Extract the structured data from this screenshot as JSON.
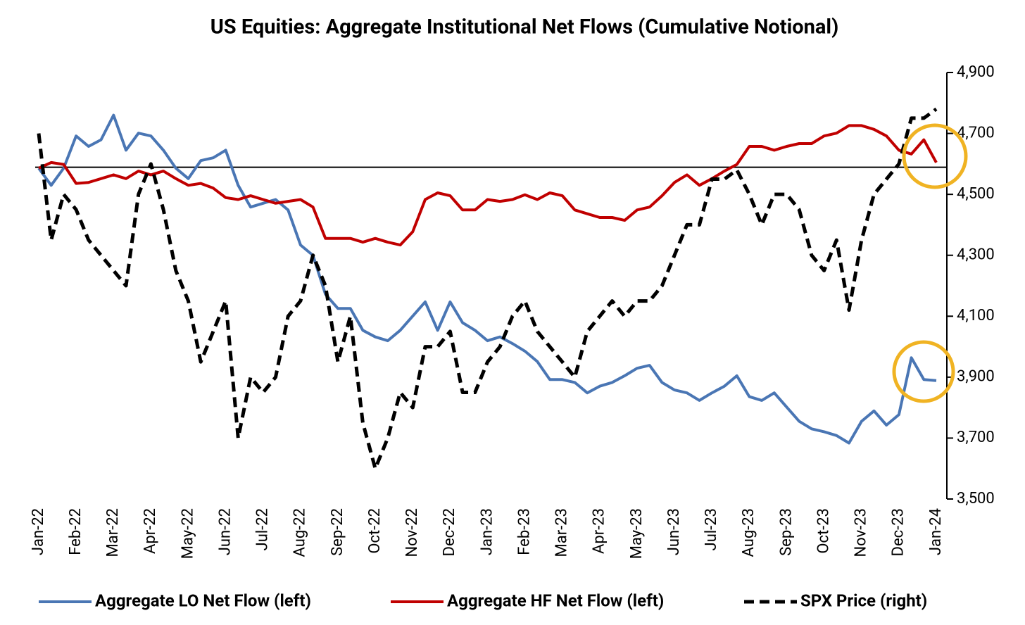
{
  "chart_data": {
    "type": "line",
    "title": "US Equities: Aggregate Institutional Net Flows (Cumulative Notional)",
    "categories": [
      "Jan-22",
      null,
      null,
      "Feb-22",
      null,
      null,
      "Mar-22",
      null,
      null,
      "Apr-22",
      null,
      null,
      "May-22",
      null,
      null,
      "Jun-22",
      null,
      null,
      "Jul-22",
      null,
      null,
      "Aug-22",
      null,
      null,
      "Sep-22",
      null,
      null,
      "Oct-22",
      null,
      null,
      "Nov-22",
      null,
      null,
      "Dec-22",
      null,
      null,
      "Jan-23",
      null,
      null,
      "Feb-23",
      null,
      null,
      "Mar-23",
      null,
      null,
      "Apr-23",
      null,
      null,
      "May-23",
      null,
      null,
      "Jun-23",
      null,
      null,
      "Jul-23",
      null,
      null,
      "Aug-23",
      null,
      null,
      "Sep-23",
      null,
      null,
      "Oct-23",
      null,
      null,
      "Nov-23",
      null,
      null,
      "Dec-23",
      null,
      null,
      "Jan-24"
    ],
    "ylim": [
      -35,
      10
    ],
    "y2lim": [
      3500,
      4900
    ],
    "y2ticks": [
      {
        "value": 3500,
        "label": "3,500"
      },
      {
        "value": 3700,
        "label": "3,700"
      },
      {
        "value": 3900,
        "label": "3,900"
      },
      {
        "value": 4100,
        "label": "4,100"
      },
      {
        "value": 4300,
        "label": "4,300"
      },
      {
        "value": 4500,
        "label": "4,500"
      },
      {
        "value": 4700,
        "label": "4,700"
      },
      {
        "value": 4900,
        "label": "4,900"
      }
    ],
    "legend": "bottom",
    "series": [
      {
        "name": "Aggregate LO Net Flow (left)",
        "color": "#4a76b4",
        "dash": false,
        "values": [
          -0.1,
          -1.9,
          -0.1,
          3.3,
          2.2,
          2.9,
          5.5,
          1.8,
          3.6,
          3.3,
          1.8,
          -0.1,
          -1.2,
          0.7,
          1.0,
          1.8,
          -1.9,
          -4.2,
          -3.8,
          -3.4,
          -4.5,
          -8.2,
          -9.3,
          -13.4,
          -14.9,
          -14.9,
          -17.2,
          -17.9,
          -18.3,
          -17.2,
          -15.7,
          -14.2,
          -17.2,
          -14.2,
          -16.4,
          -17.2,
          -18.3,
          -17.9,
          -18.6,
          -19.4,
          -20.5,
          -22.4,
          -22.4,
          -22.7,
          -23.8,
          -23.1,
          -22.7,
          -22.0,
          -21.2,
          -20.9,
          -22.7,
          -23.5,
          -23.8,
          -24.6,
          -23.8,
          -23.1,
          -22.0,
          -24.2,
          -24.6,
          -23.8,
          -25.3,
          -26.8,
          -27.6,
          -27.9,
          -28.3,
          -29.1,
          -26.8,
          -25.7,
          -27.2,
          -26.1,
          -20.1,
          -22.4,
          -22.5
        ]
      },
      {
        "name": "Aggregate HF Net Flow (left)",
        "color": "#c00000",
        "dash": false,
        "values": [
          -0.1,
          0.5,
          0.3,
          -1.7,
          -1.6,
          -1.2,
          -0.8,
          -1.2,
          -0.4,
          -0.8,
          -0.4,
          -1.2,
          -1.9,
          -1.7,
          -2.2,
          -3.2,
          -3.4,
          -3.0,
          -3.4,
          -3.8,
          -3.6,
          -3.4,
          -4.2,
          -7.5,
          -7.5,
          -7.5,
          -7.9,
          -7.5,
          -7.9,
          -8.2,
          -6.8,
          -3.4,
          -2.7,
          -3.0,
          -4.5,
          -4.5,
          -3.4,
          -3.6,
          -3.4,
          -2.9,
          -3.4,
          -2.7,
          -3.0,
          -4.5,
          -4.9,
          -5.3,
          -5.3,
          -5.6,
          -4.5,
          -4.2,
          -3.0,
          -1.6,
          -0.8,
          -1.9,
          -1.2,
          -0.4,
          0.3,
          2.2,
          2.2,
          1.8,
          2.2,
          2.5,
          2.5,
          3.3,
          3.6,
          4.4,
          4.4,
          4.0,
          3.3,
          1.8,
          1.4,
          2.9,
          0.5
        ]
      },
      {
        "name": "SPX Price (right)",
        "color": "#000000",
        "dash": true,
        "axis": "y2",
        "values": [
          4700,
          4350,
          4500,
          4450,
          4350,
          4300,
          4250,
          4200,
          4500,
          4600,
          4450,
          4250,
          4150,
          3950,
          4050,
          4150,
          3700,
          3900,
          3850,
          3900,
          4100,
          4150,
          4300,
          4200,
          3950,
          4100,
          3750,
          3600,
          3700,
          3850,
          3800,
          4000,
          4000,
          4050,
          3850,
          3850,
          3950,
          4000,
          4100,
          4150,
          4050,
          4000,
          3950,
          3900,
          4050,
          4100,
          4150,
          4100,
          4150,
          4150,
          4200,
          4300,
          4400,
          4400,
          4550,
          4550,
          4580,
          4500,
          4400,
          4500,
          4500,
          4450,
          4300,
          4250,
          4350,
          4120,
          4350,
          4500,
          4550,
          4600,
          4750,
          4750,
          4780
        ]
      }
    ]
  }
}
